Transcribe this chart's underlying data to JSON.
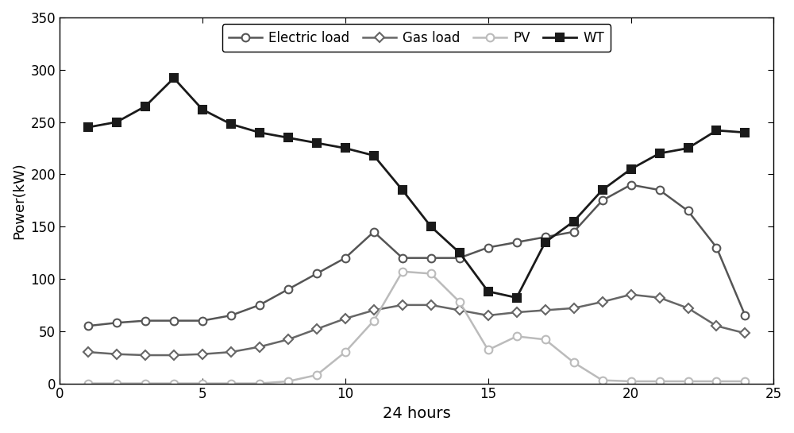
{
  "hours": [
    1,
    2,
    3,
    4,
    5,
    6,
    7,
    8,
    9,
    10,
    11,
    12,
    13,
    14,
    15,
    16,
    17,
    18,
    19,
    20,
    21,
    22,
    23,
    24
  ],
  "electric_load": [
    55,
    58,
    60,
    60,
    60,
    65,
    75,
    90,
    105,
    120,
    145,
    120,
    120,
    120,
    130,
    135,
    140,
    145,
    175,
    190,
    185,
    165,
    130,
    65
  ],
  "gas_load": [
    30,
    28,
    27,
    27,
    28,
    30,
    35,
    42,
    52,
    62,
    70,
    75,
    75,
    70,
    65,
    68,
    70,
    72,
    78,
    85,
    82,
    72,
    55,
    48
  ],
  "pv": [
    0,
    0,
    0,
    0,
    0,
    0,
    0,
    2,
    8,
    30,
    60,
    107,
    105,
    78,
    32,
    45,
    42,
    20,
    3,
    2,
    2,
    2,
    2,
    2
  ],
  "wt": [
    245,
    250,
    265,
    292,
    262,
    248,
    240,
    235,
    230,
    225,
    218,
    185,
    150,
    125,
    88,
    82,
    135,
    155,
    185,
    205,
    220,
    225,
    242,
    240
  ],
  "electric_load_color": "#555555",
  "gas_load_color": "#666666",
  "pv_color": "#bbbbbb",
  "wt_color": "#1a1a1a",
  "xlabel": "24 hours",
  "ylabel": "Power(kW)",
  "xlim": [
    0,
    25
  ],
  "ylim": [
    0,
    350
  ],
  "yticks": [
    0,
    50,
    100,
    150,
    200,
    250,
    300,
    350
  ],
  "xticks": [
    0,
    5,
    10,
    15,
    20,
    25
  ],
  "legend_labels": [
    "Electric load",
    "Gas load",
    "PV",
    "WT"
  ],
  "title": "",
  "linewidth_regular": 1.8,
  "linewidth_wt": 2.0,
  "markersize": 7,
  "markersize_diamond": 6
}
